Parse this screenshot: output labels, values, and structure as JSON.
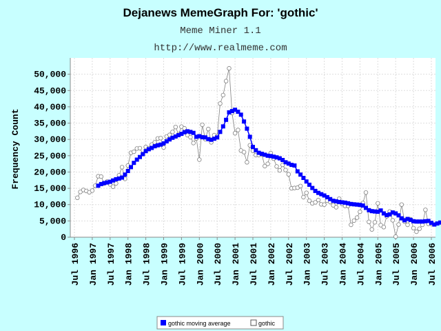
{
  "chart_data": {
    "type": "line",
    "title": "Dejanews MemeGraph For: 'gothic'",
    "subtitle": "Meme Miner 1.1",
    "source": "http://www.realmeme.com",
    "ylabel": "Frequency Count",
    "xlabel": "",
    "ylim": [
      0,
      55000
    ],
    "grid": true,
    "legend_position": "bottom",
    "colors": {
      "moving_average": "#0000ff",
      "raw": "#808080",
      "background": "#c8ffff",
      "plot_bg": "#ffffff"
    },
    "y_ticks": [
      "0",
      "5,000",
      "10,000",
      "15,000",
      "20,000",
      "25,000",
      "30,000",
      "35,000",
      "40,000",
      "45,000",
      "50,000"
    ],
    "x_ticks": [
      "Jul 1996",
      "Jan 1997",
      "Jul 1997",
      "Jan 1998",
      "Jul 1998",
      "Jan 1999",
      "Jul 1999",
      "Jan 2000",
      "Jul 2000",
      "Jan 2001",
      "Jul 2001",
      "Jan 2002",
      "Jul 2002",
      "Jan 2003",
      "Jul 2003",
      "Jan 2004",
      "Jul 2004",
      "Jan 2005",
      "Jul 2005",
      "Jan 2006",
      "Jul 2006"
    ],
    "series": [
      {
        "name": "gothic moving average",
        "start": "1997-03",
        "values": [
          15800,
          16300,
          16600,
          16800,
          17000,
          17400,
          17800,
          18000,
          18300,
          19200,
          20300,
          21500,
          22800,
          23800,
          24600,
          25500,
          26400,
          27000,
          27400,
          27900,
          28200,
          28400,
          28800,
          29400,
          30000,
          30500,
          30900,
          31300,
          31700,
          32200,
          32500,
          32300,
          32000,
          30800,
          31000,
          30700,
          30600,
          30100,
          29900,
          30200,
          30600,
          32300,
          34000,
          36000,
          38300,
          38700,
          39100,
          38500,
          37600,
          35500,
          33300,
          30800,
          27700,
          26700,
          25900,
          25600,
          25300,
          25000,
          24900,
          24700,
          24500,
          24200,
          23700,
          23000,
          22600,
          22200,
          22000,
          20200,
          19200,
          18200,
          17100,
          16100,
          15100,
          14200,
          13600,
          13200,
          12800,
          12300,
          11700,
          11200,
          11000,
          10800,
          10700,
          10600,
          10400,
          10200,
          10100,
          10000,
          9900,
          9700,
          9000,
          8300,
          8000,
          7900,
          7800,
          8200,
          7300,
          6800,
          7000,
          7600,
          7300,
          6700,
          5800,
          5200,
          5600,
          5300,
          4900,
          4800,
          4800,
          4800,
          4900,
          5000,
          4400,
          3900,
          4200,
          4500,
          4100,
          4000
        ]
      },
      {
        "name": "gothic",
        "start": "1996-08",
        "values": [
          12100,
          13900,
          14500,
          14200,
          13800,
          14300,
          15800,
          18700,
          18600,
          16500,
          17100,
          16200,
          15500,
          16500,
          19000,
          21500,
          17900,
          22000,
          25900,
          26200,
          27200,
          27300,
          25500,
          27700,
          27300,
          28400,
          29100,
          30300,
          30400,
          27500,
          30900,
          31400,
          32300,
          33800,
          31600,
          33900,
          33400,
          31300,
          30700,
          28900,
          30300,
          23800,
          34500,
          30100,
          33200,
          29100,
          31300,
          31000,
          41000,
          43600,
          47900,
          51800,
          38100,
          31900,
          32900,
          26600,
          26100,
          23000,
          28200,
          26500,
          25200,
          25200,
          25400,
          21800,
          22500,
          25800,
          24100,
          21700,
          20500,
          22200,
          20600,
          19300,
          15000,
          15100,
          15200,
          15700,
          12300,
          13600,
          11200,
          10400,
          10700,
          11400,
          10100,
          10000,
          11200,
          10800,
          9800,
          9200,
          11800,
          10200,
          9600,
          9600,
          3800,
          5100,
          6000,
          7800,
          10500,
          13700,
          4700,
          2400,
          4600,
          10400,
          3700,
          3100,
          6400,
          7900,
          5200,
          200,
          3900,
          10000,
          4800,
          3800,
          5500,
          2800,
          1700,
          2600,
          3800,
          8400,
          4100,
          4100
        ]
      }
    ]
  }
}
